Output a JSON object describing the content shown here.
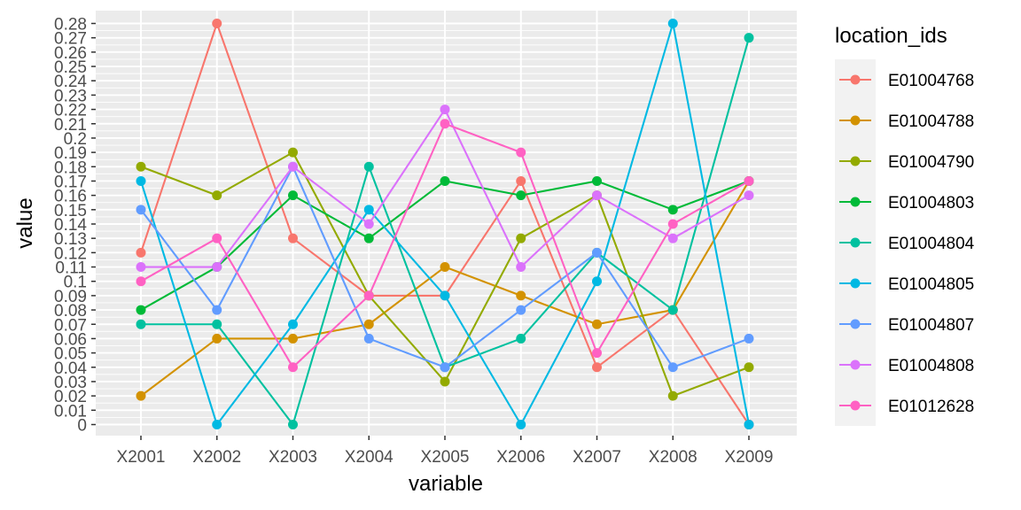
{
  "chart_data": {
    "type": "line",
    "xlabel": "variable",
    "ylabel": "value",
    "categories": [
      "X2001",
      "X2002",
      "X2003",
      "X2004",
      "X2005",
      "X2006",
      "X2007",
      "X2008",
      "X2009"
    ],
    "ylim": [
      0,
      0.28
    ],
    "yticks": [
      "0",
      "0.01",
      "0.02",
      "0.03",
      "0.04",
      "0.05",
      "0.06",
      "0.07",
      "0.08",
      "0.09",
      "0.1",
      "0.11",
      "0.12",
      "0.13",
      "0.14",
      "0.15",
      "0.16",
      "0.17",
      "0.18",
      "0.19",
      "0.2",
      "0.21",
      "0.22",
      "0.23",
      "0.24",
      "0.25",
      "0.26",
      "0.27",
      "0.28"
    ],
    "legend_title": "location_ids",
    "legend_position": "right",
    "grid": true,
    "series": [
      {
        "name": "E01004768",
        "color": "#F8766D",
        "values": [
          0.12,
          0.28,
          0.13,
          0.09,
          0.09,
          0.17,
          0.04,
          0.08,
          0
        ]
      },
      {
        "name": "E01004788",
        "color": "#D39200",
        "values": [
          0.02,
          0.06,
          0.06,
          0.07,
          0.11,
          0.09,
          0.07,
          0.08,
          0.17
        ]
      },
      {
        "name": "E01004790",
        "color": "#93AA00",
        "values": [
          0.18,
          0.16,
          0.19,
          0.09,
          0.03,
          0.13,
          0.16,
          0.02,
          0.04
        ]
      },
      {
        "name": "E01004803",
        "color": "#00BA38",
        "values": [
          0.08,
          0.11,
          0.16,
          0.13,
          0.17,
          0.16,
          0.17,
          0.15,
          0.17
        ]
      },
      {
        "name": "E01004804",
        "color": "#00C19F",
        "values": [
          0.07,
          0.07,
          0,
          0.18,
          0.04,
          0.06,
          0.12,
          0.08,
          0.27
        ]
      },
      {
        "name": "E01004805",
        "color": "#00B9E3",
        "values": [
          0.17,
          0,
          0.07,
          0.15,
          0.09,
          0,
          0.1,
          0.28,
          0
        ]
      },
      {
        "name": "E01004807",
        "color": "#619CFF",
        "values": [
          0.15,
          0.08,
          0.18,
          0.06,
          0.04,
          0.08,
          0.12,
          0.04,
          0.06
        ]
      },
      {
        "name": "E01004808",
        "color": "#DB72FB",
        "values": [
          0.11,
          0.11,
          0.18,
          0.14,
          0.22,
          0.11,
          0.16,
          0.13,
          0.16
        ]
      },
      {
        "name": "E01012628",
        "color": "#FF61C3",
        "values": [
          0.1,
          0.13,
          0.04,
          0.09,
          0.21,
          0.19,
          0.05,
          0.14,
          0.17
        ]
      }
    ]
  }
}
